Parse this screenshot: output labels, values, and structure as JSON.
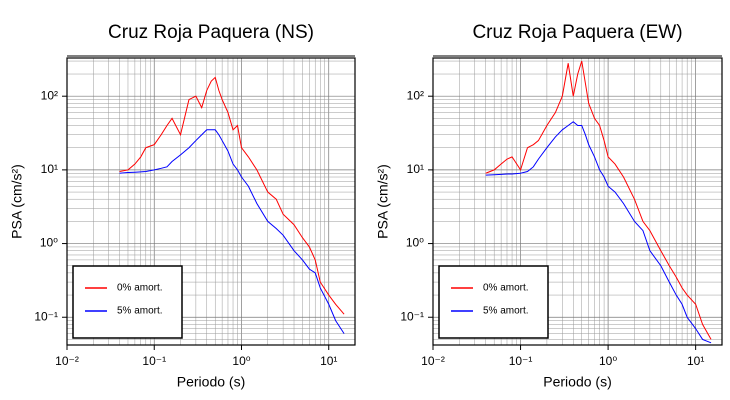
{
  "chart_data": [
    {
      "type": "line",
      "title": "Cruz Roja Paquera (NS)",
      "xlabel": "Periodo (s)",
      "ylabel": "PSA (cm/s²)",
      "xscale": "log",
      "yscale": "log",
      "grid": true,
      "minor_grid": true,
      "legend": "lower left",
      "xlim": [
        0.01,
        20
      ],
      "ylim": [
        0.042,
        330
      ],
      "xticks": [
        {
          "value": 0.01,
          "label": "10⁻²"
        },
        {
          "value": 0.1,
          "label": "10⁻¹"
        },
        {
          "value": 1,
          "label": "10⁰"
        },
        {
          "value": 10,
          "label": "10¹"
        }
      ],
      "yticks": [
        {
          "value": 0.1,
          "label": "10⁻¹"
        },
        {
          "value": 1,
          "label": "10⁰"
        },
        {
          "value": 10,
          "label": "10¹"
        },
        {
          "value": 100,
          "label": "10²"
        }
      ],
      "x": [
        0.04,
        0.05,
        0.06,
        0.07,
        0.08,
        0.1,
        0.12,
        0.14,
        0.16,
        0.2,
        0.25,
        0.3,
        0.35,
        0.4,
        0.45,
        0.5,
        0.55,
        0.6,
        0.7,
        0.8,
        0.9,
        1.0,
        1.2,
        1.5,
        2,
        2.5,
        3,
        4,
        5,
        6,
        7,
        8,
        10,
        12,
        15
      ],
      "series": [
        {
          "name": "0% amort.",
          "color": "#ff0000",
          "values": [
            9.5,
            10,
            12,
            15,
            20,
            22,
            30,
            40,
            50,
            30,
            90,
            100,
            70,
            120,
            160,
            180,
            120,
            90,
            60,
            35,
            40,
            20,
            15,
            10,
            5,
            4,
            2.5,
            1.8,
            1.2,
            0.9,
            0.6,
            0.3,
            0.2,
            0.15,
            0.11
          ]
        },
        {
          "name": "5% amort.",
          "color": "#0000ff",
          "values": [
            9,
            9.2,
            9.3,
            9.4,
            9.5,
            10,
            10.5,
            11,
            13,
            16,
            20,
            25,
            30,
            35,
            35,
            35,
            30,
            25,
            18,
            12,
            10,
            8,
            6,
            3.5,
            2,
            1.6,
            1.3,
            0.8,
            0.6,
            0.45,
            0.4,
            0.25,
            0.15,
            0.09,
            0.06
          ]
        }
      ]
    },
    {
      "type": "line",
      "title": "Cruz Roja Paquera (EW)",
      "xlabel": "Periodo (s)",
      "ylabel": "PSA (cm/s²)",
      "xscale": "log",
      "yscale": "log",
      "grid": true,
      "minor_grid": true,
      "legend": "lower left",
      "xlim": [
        0.01,
        20
      ],
      "ylim": [
        0.042,
        330
      ],
      "xticks": [
        {
          "value": 0.01,
          "label": "10⁻²"
        },
        {
          "value": 0.1,
          "label": "10⁻¹"
        },
        {
          "value": 1,
          "label": "10⁰"
        },
        {
          "value": 10,
          "label": "10¹"
        }
      ],
      "yticks": [
        {
          "value": 0.1,
          "label": "10⁻¹"
        },
        {
          "value": 1,
          "label": "10⁰"
        },
        {
          "value": 10,
          "label": "10¹"
        },
        {
          "value": 100,
          "label": "10²"
        }
      ],
      "x": [
        0.04,
        0.05,
        0.06,
        0.07,
        0.08,
        0.1,
        0.12,
        0.14,
        0.16,
        0.2,
        0.25,
        0.3,
        0.35,
        0.4,
        0.45,
        0.5,
        0.55,
        0.6,
        0.7,
        0.8,
        0.9,
        1.0,
        1.2,
        1.5,
        2,
        2.5,
        3,
        4,
        5,
        6,
        7,
        8,
        10,
        12,
        15
      ],
      "series": [
        {
          "name": "0% amort.",
          "color": "#ff0000",
          "values": [
            9,
            10,
            12,
            14,
            15,
            10,
            20,
            22,
            25,
            40,
            60,
            100,
            280,
            100,
            200,
            300,
            150,
            80,
            50,
            40,
            25,
            15,
            12,
            8,
            4,
            2,
            1.5,
            0.8,
            0.5,
            0.35,
            0.25,
            0.2,
            0.15,
            0.08,
            0.05
          ]
        },
        {
          "name": "5% amort.",
          "color": "#0000ff",
          "values": [
            8.5,
            8.6,
            8.7,
            8.8,
            8.8,
            9,
            9.5,
            11,
            14,
            20,
            28,
            35,
            40,
            45,
            40,
            40,
            30,
            22,
            15,
            10,
            8,
            6,
            5,
            3.5,
            2,
            1.5,
            0.8,
            0.5,
            0.3,
            0.2,
            0.15,
            0.1,
            0.07,
            0.05,
            0.045
          ]
        }
      ]
    }
  ]
}
